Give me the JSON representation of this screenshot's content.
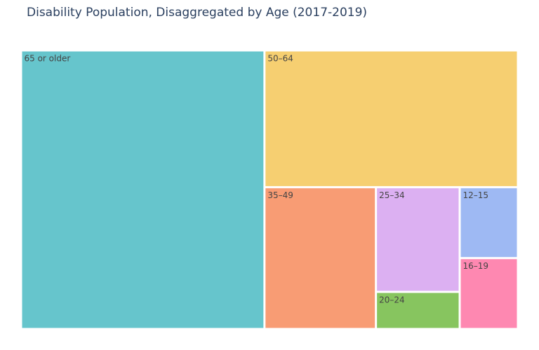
{
  "chart_data": {
    "type": "treemap",
    "title": "Disability Population, Disaggregated by Age (2017-2019)",
    "tiles": [
      {
        "label": "65 or older",
        "value": 13300,
        "color": "#66c5cc"
      },
      {
        "label": "50–64",
        "value": 6800,
        "color": "#f6cf71"
      },
      {
        "label": "35–49",
        "value": 3100,
        "color": "#f89c74"
      },
      {
        "label": "25–34",
        "value": 1720,
        "color": "#dcb0f2"
      },
      {
        "label": "20–24",
        "value": 610,
        "color": "#87c55f"
      },
      {
        "label": "12–15",
        "value": 810,
        "color": "#9eb9f3"
      },
      {
        "label": "16–19",
        "value": 810,
        "color": "#fe88b1"
      }
    ]
  }
}
